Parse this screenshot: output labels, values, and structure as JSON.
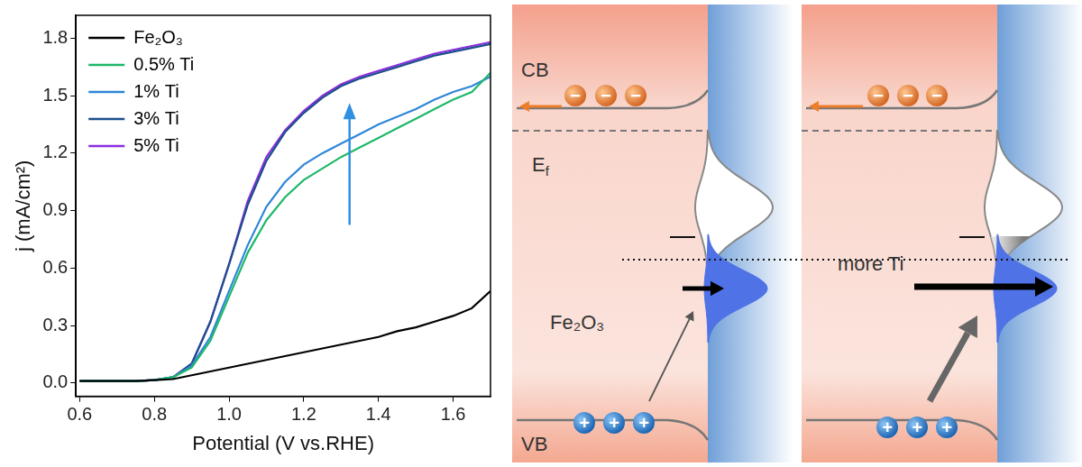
{
  "chart_data": {
    "type": "line",
    "xlabel": "Potential (V vs.RHE)",
    "ylabel": "j (mA/cm²)",
    "x": [
      0.6,
      0.65,
      0.7,
      0.75,
      0.8,
      0.85,
      0.9,
      0.95,
      1.0,
      1.05,
      1.1,
      1.15,
      1.2,
      1.25,
      1.3,
      1.35,
      1.4,
      1.45,
      1.5,
      1.55,
      1.6,
      1.65,
      1.7
    ],
    "series": [
      {
        "name": "Fe₂O₃",
        "color": "#000000",
        "values": [
          0.01,
          0.01,
          0.01,
          0.01,
          0.015,
          0.02,
          0.04,
          0.06,
          0.08,
          0.1,
          0.12,
          0.14,
          0.16,
          0.18,
          0.2,
          0.22,
          0.24,
          0.27,
          0.29,
          0.32,
          0.35,
          0.39,
          0.48
        ]
      },
      {
        "name": "0.5% Ti",
        "color": "#1fb86a",
        "values": [
          0.01,
          0.01,
          0.01,
          0.01,
          0.015,
          0.03,
          0.08,
          0.22,
          0.45,
          0.68,
          0.85,
          0.97,
          1.06,
          1.12,
          1.18,
          1.23,
          1.28,
          1.33,
          1.38,
          1.43,
          1.48,
          1.52,
          1.62
        ]
      },
      {
        "name": "1% Ti",
        "color": "#2f86d8",
        "values": [
          0.01,
          0.01,
          0.01,
          0.01,
          0.015,
          0.03,
          0.09,
          0.24,
          0.48,
          0.72,
          0.92,
          1.05,
          1.14,
          1.2,
          1.25,
          1.3,
          1.35,
          1.39,
          1.43,
          1.48,
          1.52,
          1.55,
          1.6
        ]
      },
      {
        "name": "3% Ti",
        "color": "#1d4f8c",
        "values": [
          0.01,
          0.01,
          0.01,
          0.01,
          0.015,
          0.03,
          0.1,
          0.32,
          0.62,
          0.93,
          1.16,
          1.31,
          1.41,
          1.49,
          1.55,
          1.59,
          1.62,
          1.65,
          1.68,
          1.71,
          1.73,
          1.75,
          1.77
        ]
      },
      {
        "name": "5% Ti",
        "color": "#8a2ee0",
        "values": [
          0.01,
          0.01,
          0.01,
          0.01,
          0.015,
          0.03,
          0.1,
          0.32,
          0.62,
          0.95,
          1.18,
          1.32,
          1.42,
          1.5,
          1.56,
          1.6,
          1.63,
          1.66,
          1.69,
          1.72,
          1.74,
          1.76,
          1.78
        ]
      }
    ],
    "xlim": [
      0.59,
      1.7
    ],
    "xticks": [
      0.6,
      0.8,
      {
        "value": 1,
        "label": "1.0"
      },
      1.2,
      1.4,
      1.6
    ],
    "ylim": [
      -0.07,
      1.92
    ],
    "yticks": [
      {
        "value": 0,
        "label": "0.0"
      },
      0.3,
      0.6,
      0.9,
      1.2,
      1.5,
      1.8
    ],
    "legend": "upper left",
    "grid": false
  },
  "diagram": {
    "band_labels": {
      "cb": "CB",
      "fermi": "Ef",
      "vb": "VB"
    },
    "material": "Fe₂O₃",
    "panel_2_label": "more Ti",
    "electron_sign": "−",
    "hole_sign": "+"
  }
}
